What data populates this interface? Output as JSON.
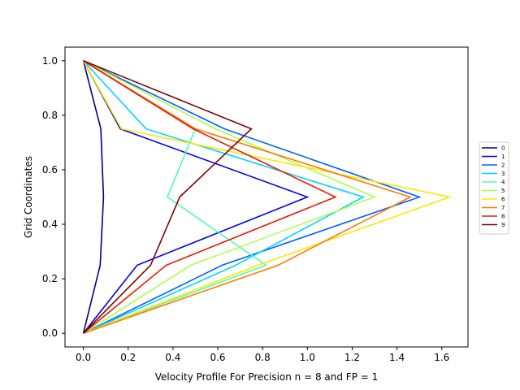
{
  "chart_data": {
    "type": "line",
    "title": "",
    "xlabel": "Velocity Profile For Precision n = 8 and FP = 1",
    "ylabel": "Grid Coordinates",
    "xlim": [
      -0.082,
      1.717
    ],
    "ylim": [
      -0.05,
      1.05
    ],
    "xticks": [
      0.0,
      0.2,
      0.4,
      0.6,
      0.8,
      1.0,
      1.2,
      1.4,
      1.6
    ],
    "xtick_labels": [
      "0.0",
      "0.2",
      "0.4",
      "0.6",
      "0.8",
      "1.0",
      "1.2",
      "1.4",
      "1.6"
    ],
    "yticks": [
      0.0,
      0.2,
      0.4,
      0.6,
      0.8,
      1.0
    ],
    "ytick_labels": [
      "0.0",
      "0.2",
      "0.4",
      "0.6",
      "0.8",
      "1.0"
    ],
    "grid": false,
    "legend_position": "center-right",
    "y": [
      0.0,
      0.25,
      0.5,
      0.75,
      1.0
    ],
    "series": [
      {
        "name": "0",
        "color": "#00007f",
        "x": [
          0.0,
          0.075,
          0.09,
          0.078,
          0.0
        ]
      },
      {
        "name": "1",
        "color": "#0000e8",
        "x": [
          0.0,
          0.24,
          1.0,
          0.165,
          0.0
        ]
      },
      {
        "name": "2",
        "color": "#0060ff",
        "x": [
          0.0,
          0.62,
          1.5,
          0.63,
          0.0
        ]
      },
      {
        "name": "3",
        "color": "#00d4ff",
        "x": [
          0.0,
          0.68,
          1.25,
          0.28,
          0.0
        ]
      },
      {
        "name": "4",
        "color": "#4cffaa",
        "x": [
          0.0,
          0.815,
          0.375,
          0.5,
          0.0
        ]
      },
      {
        "name": "5",
        "color": "#aaff4c",
        "x": [
          0.0,
          0.48,
          1.3,
          0.59,
          0.0
        ]
      },
      {
        "name": "6",
        "color": "#ffe500",
        "x": [
          0.0,
          0.78,
          1.635,
          0.17,
          0.0
        ]
      },
      {
        "name": "7",
        "color": "#ff7700",
        "x": [
          0.0,
          0.87,
          1.46,
          0.5,
          0.0
        ]
      },
      {
        "name": "8",
        "color": "#e81800",
        "x": [
          0.0,
          0.37,
          1.125,
          0.49,
          0.0
        ]
      },
      {
        "name": "9",
        "color": "#7f0000",
        "x": [
          0.0,
          0.3,
          0.43,
          0.75,
          0.0
        ]
      }
    ]
  }
}
